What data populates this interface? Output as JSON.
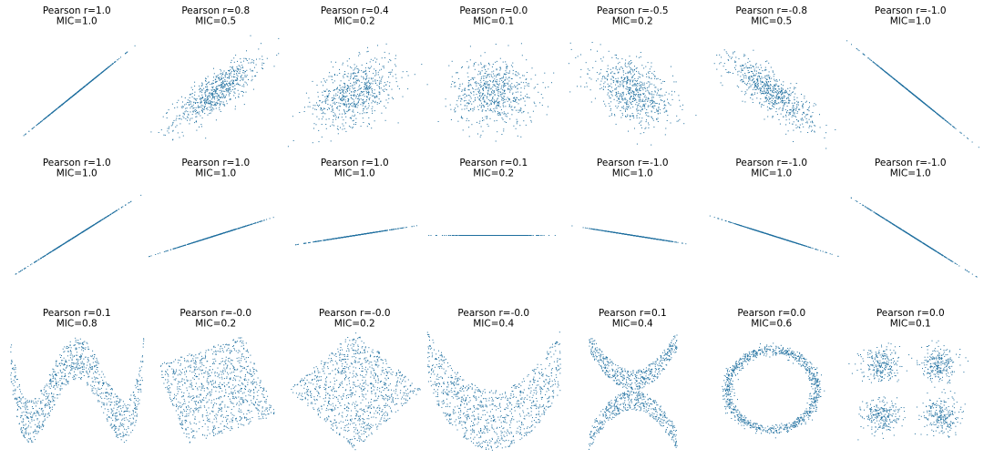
{
  "figure": {
    "point_color": "#1f6f9f",
    "background": "#ffffff"
  },
  "chart_data": [
    {
      "type": "scatter",
      "kind": "linear",
      "r": 1.0,
      "title": [
        "Pearson r=1.0",
        "MIC=1.0"
      ]
    },
    {
      "type": "scatter",
      "kind": "gaussian",
      "r": 0.8,
      "title": [
        "Pearson r=0.8",
        "MIC=0.5"
      ]
    },
    {
      "type": "scatter",
      "kind": "gaussian",
      "r": 0.4,
      "title": [
        "Pearson r=0.4",
        "MIC=0.2"
      ]
    },
    {
      "type": "scatter",
      "kind": "gaussian",
      "r": 0.0,
      "title": [
        "Pearson r=0.0",
        "MIC=0.1"
      ]
    },
    {
      "type": "scatter",
      "kind": "gaussian",
      "r": -0.5,
      "title": [
        "Pearson r=-0.5",
        "MIC=0.2"
      ]
    },
    {
      "type": "scatter",
      "kind": "gaussian",
      "r": -0.8,
      "title": [
        "Pearson r=-0.8",
        "MIC=0.5"
      ]
    },
    {
      "type": "scatter",
      "kind": "linear",
      "r": -1.0,
      "title": [
        "Pearson r=-1.0",
        "MIC=1.0"
      ]
    },
    {
      "type": "scatter",
      "kind": "line",
      "slope": 1.0,
      "title": [
        "Pearson r=1.0",
        "MIC=1.0"
      ]
    },
    {
      "type": "scatter",
      "kind": "line",
      "slope": 0.5,
      "title": [
        "Pearson r=1.0",
        "MIC=1.0"
      ]
    },
    {
      "type": "scatter",
      "kind": "line",
      "slope": 0.25,
      "title": [
        "Pearson r=1.0",
        "MIC=1.0"
      ]
    },
    {
      "type": "scatter",
      "kind": "line",
      "slope": 0.0,
      "title": [
        "Pearson r=0.1",
        "MIC=0.2"
      ]
    },
    {
      "type": "scatter",
      "kind": "line",
      "slope": -0.25,
      "title": [
        "Pearson r=-1.0",
        "MIC=1.0"
      ]
    },
    {
      "type": "scatter",
      "kind": "line",
      "slope": -0.5,
      "title": [
        "Pearson r=-1.0",
        "MIC=1.0"
      ]
    },
    {
      "type": "scatter",
      "kind": "line",
      "slope": -1.0,
      "title": [
        "Pearson r=-1.0",
        "MIC=1.0"
      ]
    },
    {
      "type": "scatter",
      "kind": "wave",
      "title": [
        "Pearson r=0.1",
        "MIC=0.8"
      ]
    },
    {
      "type": "scatter",
      "kind": "rotated_square",
      "angle": 20,
      "title": [
        "Pearson r=-0.0",
        "MIC=0.2"
      ]
    },
    {
      "type": "scatter",
      "kind": "rotated_square",
      "angle": 45,
      "title": [
        "Pearson r=-0.0",
        "MIC=0.2"
      ]
    },
    {
      "type": "scatter",
      "kind": "parabola",
      "title": [
        "Pearson r=-0.0",
        "MIC=0.4"
      ]
    },
    {
      "type": "scatter",
      "kind": "x_shape",
      "title": [
        "Pearson r=0.1",
        "MIC=0.4"
      ]
    },
    {
      "type": "scatter",
      "kind": "circle",
      "title": [
        "Pearson r=0.0",
        "MIC=0.6"
      ]
    },
    {
      "type": "scatter",
      "kind": "four_clusters",
      "title": [
        "Pearson r=0.0",
        "MIC=0.1"
      ]
    }
  ]
}
